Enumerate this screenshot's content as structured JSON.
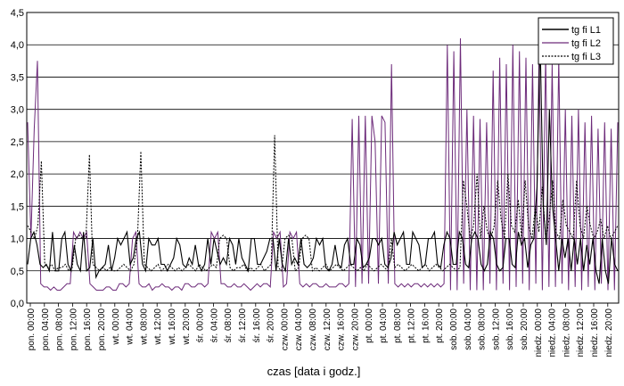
{
  "chart_data": {
    "type": "line",
    "title": "",
    "xlabel": "czas [data i godz.]",
    "ylabel": "",
    "ylim": [
      0,
      4.5
    ],
    "y_ticks": [
      "0,0",
      "0,5",
      "1,0",
      "1,5",
      "2,0",
      "2,5",
      "3,0",
      "3,5",
      "4,0",
      "4,5"
    ],
    "grid": "horizontal",
    "legend_position": "top-right",
    "x_tick_labels": [
      "pon. 00:00",
      "pon. 04:00",
      "pon. 08:00",
      "pon. 12:00",
      "pon. 16:00",
      "pon. 20:00",
      "wt. 00:00",
      "wt. 04:00",
      "wt. 08:00",
      "wt. 12:00",
      "wt. 16:00",
      "wt. 20:00",
      "śr. 00:00",
      "śr. 04:00",
      "śr. 08:00",
      "śr. 12:00",
      "śr. 16:00",
      "śr. 20:00",
      "czw. 00:00",
      "czw. 04:00",
      "czw. 08:00",
      "czw. 12:00",
      "czw. 16:00",
      "czw. 20:00",
      "pt. 00:00",
      "pt. 04:00",
      "pt. 08:00",
      "pt. 12:00",
      "pt. 16:00",
      "pt. 20:00",
      "sob. 00:00",
      "sob. 04:00",
      "sob. 08:00",
      "sob. 12:00",
      "sob. 16:00",
      "sob. 20:00",
      "niedz. 00:00",
      "niedz. 04:00",
      "niedz. 08:00",
      "niedz. 12:00",
      "niedz. 16:00",
      "niedz. 20:00"
    ],
    "x_hours_per_tick": 4,
    "series": [
      {
        "name": "tg fi L1",
        "style": "solid",
        "color": "#000000",
        "values": [
          0.6,
          1.0,
          1.1,
          0.9,
          0.6,
          0.55,
          0.6,
          0.5,
          1.1,
          0.5,
          0.5,
          1.0,
          1.1,
          0.6,
          0.5,
          0.9,
          0.6,
          0.5,
          1.1,
          0.5,
          0.55,
          1.0,
          0.4,
          0.5,
          0.55,
          0.6,
          0.9,
          0.5,
          0.7,
          1.0,
          0.9,
          1.0,
          1.1,
          0.6,
          0.7,
          1.0,
          1.1,
          0.6,
          0.5,
          1.0,
          0.9,
          0.9,
          1.0,
          0.6,
          0.6,
          0.5,
          0.6,
          0.7,
          1.0,
          0.9,
          0.6,
          0.55,
          0.7,
          0.6,
          0.9,
          0.6,
          0.5,
          0.6,
          1.0,
          0.6,
          1.0,
          0.8,
          0.6,
          0.7,
          0.6,
          1.0,
          0.9,
          0.6,
          1.0,
          0.7,
          0.6,
          0.5,
          1.0,
          1.0,
          0.6,
          0.6,
          0.7,
          0.8,
          1.0,
          1.0,
          0.5,
          1.0,
          0.6,
          0.5,
          1.0,
          0.6,
          0.7,
          0.6,
          1.0,
          0.6,
          0.55,
          0.6,
          0.7,
          1.0,
          0.9,
          1.0,
          0.55,
          0.5,
          0.6,
          0.9,
          0.6,
          0.55,
          0.9,
          1.0,
          0.6,
          0.6,
          1.0,
          0.9,
          0.55,
          0.6,
          0.7,
          1.0,
          1.0,
          0.9,
          1.0,
          0.6,
          0.55,
          0.7,
          1.1,
          0.9,
          1.0,
          1.1,
          0.6,
          0.6,
          1.1,
          1.0,
          0.9,
          0.55,
          0.6,
          1.0,
          1.0,
          1.1,
          0.6,
          0.55,
          0.9,
          1.1,
          1.0,
          0.6,
          0.6,
          1.1,
          1.0,
          0.6,
          0.55,
          1.0,
          1.1,
          1.0,
          0.6,
          0.5,
          0.6,
          1.1,
          1.0,
          0.6,
          0.5,
          0.55,
          1.0,
          1.0,
          0.6,
          0.55,
          1.1,
          0.9,
          1.0,
          0.55,
          0.9,
          1.0,
          1.8,
          4.1,
          1.5,
          0.9,
          3.0,
          1.5,
          1.0,
          0.5,
          1.0,
          0.7,
          1.0,
          0.5,
          1.0,
          0.6,
          1.0,
          0.5,
          0.9,
          0.6,
          1.0,
          0.5,
          0.3,
          1.0,
          0.5,
          0.3,
          1.0,
          0.6,
          0.5
        ]
      },
      {
        "name": "tg fi L2",
        "style": "solid",
        "color": "#6d2b7a",
        "values": [
          2.8,
          1.0,
          2.7,
          3.75,
          0.3,
          0.25,
          0.25,
          0.2,
          0.25,
          0.2,
          0.2,
          0.25,
          0.3,
          0.3,
          1.1,
          1.0,
          1.1,
          1.0,
          1.1,
          0.3,
          0.25,
          0.2,
          0.2,
          0.2,
          0.25,
          0.25,
          0.2,
          0.2,
          0.3,
          0.3,
          0.25,
          0.3,
          1.0,
          1.1,
          0.3,
          0.25,
          0.25,
          0.3,
          0.2,
          0.25,
          0.25,
          0.3,
          0.25,
          0.25,
          0.2,
          0.25,
          0.25,
          0.2,
          0.3,
          0.3,
          0.25,
          0.25,
          0.3,
          0.3,
          0.25,
          0.3,
          1.1,
          1.0,
          1.1,
          0.3,
          0.3,
          0.25,
          0.25,
          0.3,
          0.25,
          0.25,
          0.3,
          0.25,
          0.2,
          0.25,
          0.3,
          0.25,
          0.3,
          0.3,
          0.25,
          1.1,
          1.0,
          1.1,
          0.25,
          0.3,
          1.1,
          1.0,
          1.1,
          0.3,
          0.25,
          0.3,
          0.25,
          0.3,
          0.3,
          0.25,
          0.25,
          0.3,
          0.25,
          0.25,
          0.25,
          0.3,
          0.3,
          0.25,
          0.3,
          2.85,
          0.25,
          2.9,
          0.3,
          2.9,
          0.3,
          2.9,
          2.5,
          0.3,
          2.9,
          2.8,
          0.3,
          3.7,
          0.3,
          0.25,
          0.3,
          0.25,
          0.3,
          0.25,
          0.3,
          0.3,
          0.25,
          0.3,
          0.25,
          0.3,
          0.25,
          0.3,
          0.25,
          0.3,
          4.0,
          0.2,
          3.9,
          0.2,
          4.1,
          0.3,
          3.0,
          0.2,
          2.9,
          0.2,
          2.85,
          0.2,
          2.8,
          0.3,
          3.6,
          0.2,
          3.8,
          0.3,
          3.7,
          0.2,
          4.0,
          0.25,
          3.9,
          0.3,
          3.8,
          0.2,
          3.7,
          0.3,
          3.9,
          0.2,
          3.85,
          0.25,
          3.7,
          0.25,
          3.8,
          0.3,
          3.0,
          0.2,
          2.9,
          0.25,
          3.0,
          0.2,
          2.8,
          0.25,
          2.9,
          0.2,
          2.7,
          0.3,
          2.8,
          0.2,
          2.7,
          0.2,
          2.8
        ]
      },
      {
        "name": "tg fi L3",
        "style": "dotted",
        "color": "#000000",
        "values": [
          1.2,
          1.1,
          1.0,
          1.2,
          2.2,
          0.6,
          0.55,
          0.6,
          0.5,
          0.55,
          0.55,
          0.6,
          0.5,
          0.55,
          1.0,
          1.05,
          1.0,
          1.0,
          2.3,
          0.6,
          0.55,
          0.5,
          0.55,
          0.5,
          0.55,
          0.5,
          0.5,
          0.55,
          0.6,
          0.55,
          0.5,
          0.6,
          1.0,
          2.35,
          0.6,
          0.55,
          0.5,
          0.55,
          0.6,
          0.5,
          0.55,
          0.6,
          0.55,
          0.5,
          0.55,
          0.5,
          0.55,
          0.6,
          0.55,
          0.5,
          0.6,
          0.55,
          0.5,
          0.55,
          0.6,
          0.55,
          1.0,
          1.05,
          1.0,
          0.55,
          0.5,
          0.55,
          0.55,
          0.6,
          0.5,
          0.55,
          0.5,
          0.55,
          0.6,
          0.5,
          0.55,
          0.6,
          2.6,
          0.55,
          0.5,
          1.0,
          1.05,
          1.0,
          0.5,
          0.55,
          1.0,
          1.05,
          1.0,
          0.5,
          0.55,
          0.5,
          0.55,
          0.6,
          0.5,
          0.55,
          0.6,
          0.55,
          0.5,
          0.55,
          0.6,
          0.55,
          0.5,
          0.55,
          0.5,
          0.6,
          0.55,
          0.5,
          0.55,
          0.6,
          0.55,
          0.5,
          1.0,
          0.55,
          0.6,
          0.55,
          0.5,
          0.55,
          0.6,
          0.55,
          0.5,
          0.55,
          0.6,
          0.5,
          0.55,
          0.6,
          0.55,
          0.5,
          0.55,
          0.6,
          0.55,
          0.5,
          0.55,
          1.9,
          1.5,
          1.0,
          1.2,
          2.0,
          1.0,
          1.5,
          1.1,
          1.0,
          1.2,
          1.9,
          1.3,
          1.0,
          2.0,
          1.2,
          1.1,
          1.6,
          1.0,
          1.9,
          1.2,
          1.0,
          1.5,
          1.1,
          1.8,
          1.0,
          1.3,
          1.9,
          1.1,
          1.0,
          1.6,
          1.2,
          1.1,
          1.0,
          1.9,
          1.2,
          1.0,
          1.5,
          1.2,
          1.0,
          1.1,
          1.3,
          1.0,
          1.2,
          1.0,
          1.1,
          1.2
        ]
      }
    ]
  }
}
